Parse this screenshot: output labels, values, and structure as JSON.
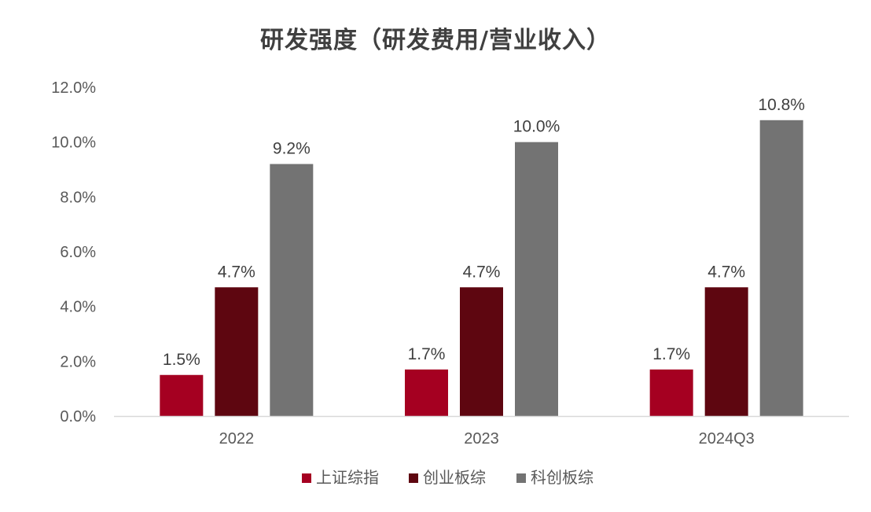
{
  "chart_data": {
    "type": "bar",
    "title": "研发强度（研发费用/营业收入）",
    "categories": [
      "2022",
      "2023",
      "2024Q3"
    ],
    "series": [
      {
        "name": "上证综指",
        "color": "#A50021",
        "values": [
          1.5,
          1.7,
          1.7
        ],
        "labels": [
          "1.5%",
          "1.7%",
          "1.7%"
        ]
      },
      {
        "name": "创业板综",
        "color": "#5E0610",
        "values": [
          4.7,
          4.7,
          4.7
        ],
        "labels": [
          "4.7%",
          "4.7%",
          "4.7%"
        ]
      },
      {
        "name": "科创板综",
        "color": "#737373",
        "values": [
          9.2,
          10.0,
          10.8
        ],
        "labels": [
          "9.2%",
          "10.0%",
          "10.8%"
        ]
      }
    ],
    "yticks": [
      "0.0%",
      "2.0%",
      "4.0%",
      "6.0%",
      "8.0%",
      "10.0%",
      "12.0%"
    ],
    "ylim": [
      0,
      12
    ],
    "grid": false,
    "legend_position": "bottom"
  }
}
